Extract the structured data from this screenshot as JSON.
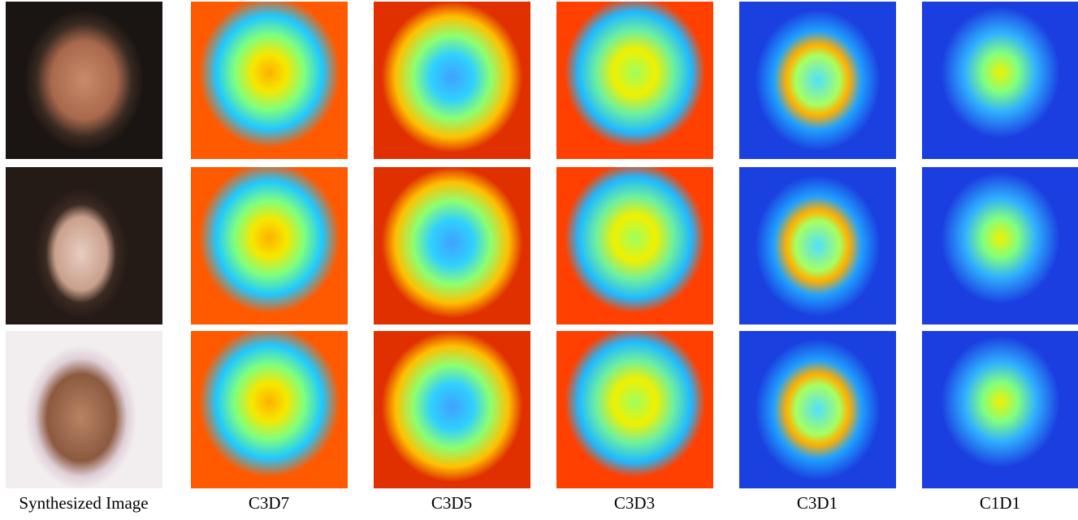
{
  "figure": {
    "column_labels": [
      "Synthesized Image",
      "C3D7",
      "C3D5",
      "C3D3",
      "C3D1",
      "C1D1"
    ]
  }
}
